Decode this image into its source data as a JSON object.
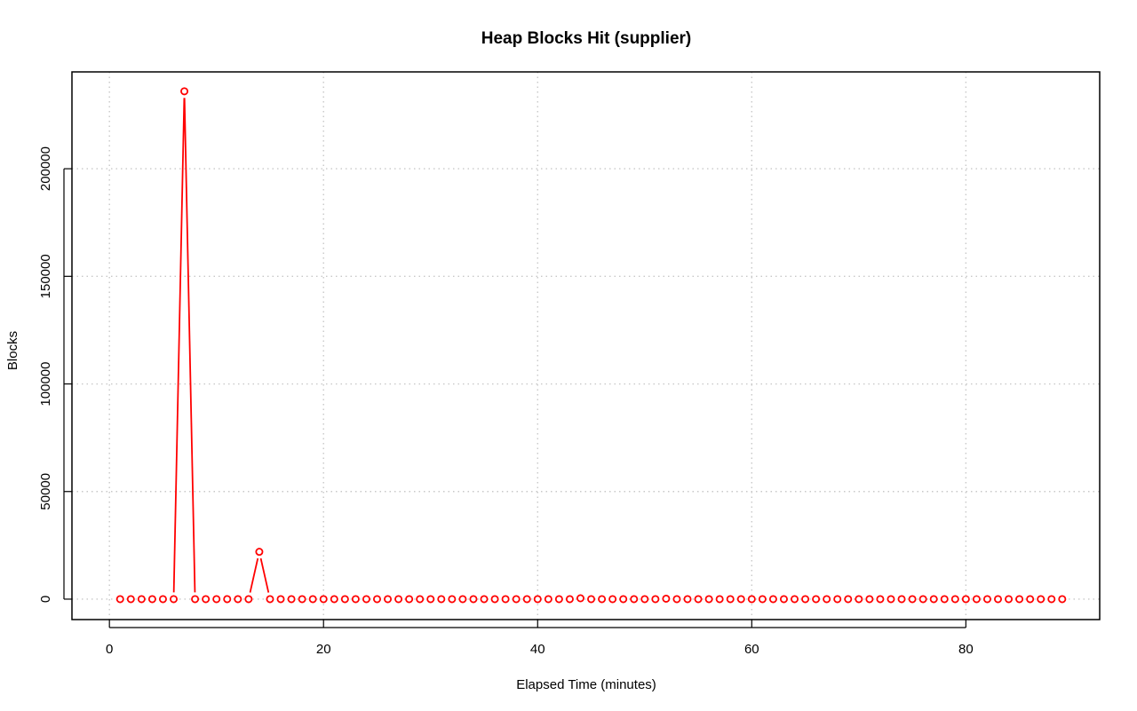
{
  "chart_data": {
    "type": "line",
    "title": "Heap Blocks Hit (supplier)",
    "xlabel": "Elapsed Time (minutes)",
    "ylabel": "Blocks",
    "xlim": [
      -3.5,
      92.5
    ],
    "ylim": [
      -9500,
      245000
    ],
    "xticks": [
      0,
      20,
      40,
      60,
      80
    ],
    "xtick_labels": [
      "0",
      "20",
      "40",
      "60",
      "80"
    ],
    "yticks": [
      0,
      50000,
      100000,
      150000,
      200000
    ],
    "ytick_labels": [
      "0",
      "50000",
      "100000",
      "150000",
      "200000"
    ],
    "grid": true,
    "legend": "none",
    "series": [
      {
        "color": "#ff0000",
        "marker": "open-circle",
        "x": [
          1,
          2,
          3,
          4,
          5,
          6,
          7,
          8,
          9,
          10,
          11,
          12,
          13,
          14,
          15,
          16,
          17,
          18,
          19,
          20,
          21,
          22,
          23,
          24,
          25,
          26,
          27,
          28,
          29,
          30,
          31,
          32,
          33,
          34,
          35,
          36,
          37,
          38,
          39,
          40,
          41,
          42,
          43,
          44,
          45,
          46,
          47,
          48,
          49,
          50,
          51,
          52,
          53,
          54,
          55,
          56,
          57,
          58,
          59,
          60,
          61,
          62,
          63,
          64,
          65,
          66,
          67,
          68,
          69,
          70,
          71,
          72,
          73,
          74,
          75,
          76,
          77,
          78,
          79,
          80,
          81,
          82,
          83,
          84,
          85,
          86,
          87,
          88,
          89
        ],
        "values": [
          0,
          0,
          0,
          0,
          0,
          0,
          236000,
          0,
          0,
          0,
          0,
          0,
          0,
          22000,
          0,
          0,
          0,
          0,
          0,
          0,
          0,
          0,
          0,
          0,
          0,
          0,
          0,
          0,
          0,
          0,
          0,
          0,
          0,
          0,
          0,
          0,
          0,
          0,
          0,
          0,
          0,
          0,
          0,
          400,
          0,
          0,
          0,
          0,
          0,
          0,
          0,
          200,
          0,
          0,
          0,
          0,
          0,
          0,
          0,
          0,
          0,
          0,
          0,
          0,
          0,
          0,
          0,
          0,
          0,
          0,
          0,
          0,
          0,
          0,
          0,
          0,
          0,
          0,
          0,
          0,
          0,
          0,
          0,
          0,
          0,
          0,
          0,
          0,
          0
        ]
      }
    ]
  }
}
